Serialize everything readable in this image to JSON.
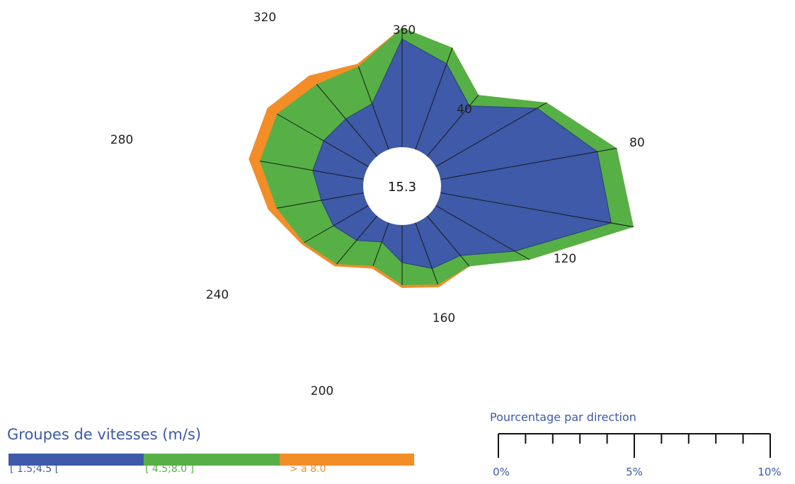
{
  "chart_data": {
    "type": "polar-stacked-area",
    "calm_value": "15.3",
    "direction_labels": [
      "40",
      "80",
      "120",
      "160",
      "200",
      "240",
      "280",
      "320",
      "360"
    ],
    "directions_deg": [
      0,
      20,
      40,
      60,
      80,
      100,
      120,
      140,
      160,
      180,
      200,
      220,
      240,
      260,
      280,
      300,
      320,
      340
    ],
    "cumulative_percent": [
      [
        5.2,
        5.6,
        5.6
      ],
      [
        4.6,
        5.2,
        5.2
      ],
      [
        3.7,
        4.2,
        4.2
      ],
      [
        5.5,
        5.9,
        5.9
      ],
      [
        7.0,
        7.7,
        7.7
      ],
      [
        7.5,
        8.3,
        8.3
      ],
      [
        4.6,
        5.2,
        5.2
      ],
      [
        3.2,
        3.7,
        3.7
      ],
      [
        3.1,
        3.7,
        3.8
      ],
      [
        2.7,
        3.5,
        3.6
      ],
      [
        2.1,
        3.0,
        3.1
      ],
      [
        2.5,
        3.6,
        3.7
      ],
      [
        2.8,
        4.0,
        4.1
      ],
      [
        2.9,
        4.5,
        4.8
      ],
      [
        3.2,
        5.1,
        5.5
      ],
      [
        3.2,
        5.1,
        5.5
      ],
      [
        3.1,
        4.7,
        5.1
      ],
      [
        3.1,
        4.5,
        4.6
      ]
    ],
    "speed_groups": [
      {
        "name": "[ 1.5;4.5 [",
        "color": "#3e5aa8"
      },
      {
        "name": "[ 4.5;8.0 ]",
        "color": "#56b045"
      },
      {
        "name": "> à 8.0",
        "color": "#f28d28"
      }
    ],
    "legend_title": "Groupes de vitesses (m/s)",
    "scale": {
      "title": "Pourcentage par direction",
      "tick_labels": [
        "0%",
        "5%",
        "10%"
      ],
      "range_percent": [
        0,
        10
      ],
      "minor_tick_step_percent": 1
    }
  }
}
